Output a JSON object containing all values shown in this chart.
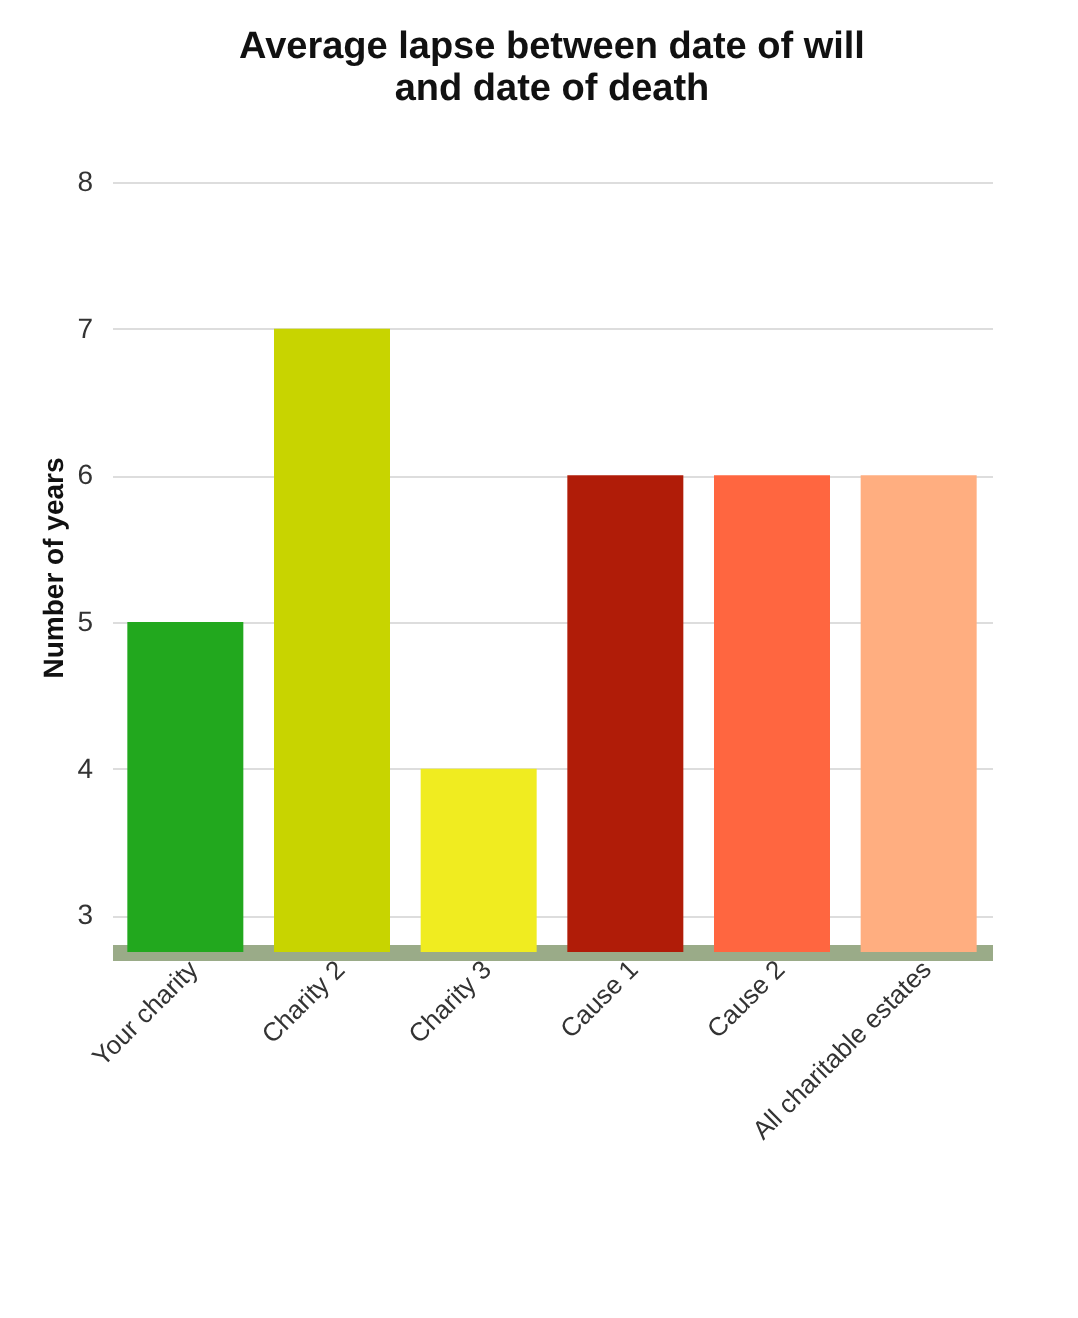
{
  "chart_data": {
    "type": "bar",
    "title": "Average lapse between date of will and date of death",
    "ylabel": "Number of years",
    "categories": [
      "Your charity",
      "Charity 2",
      "Charity 3",
      "Cause 1",
      "Cause 2",
      "All charitable estates"
    ],
    "values": [
      5,
      7,
      4,
      6,
      6,
      6
    ],
    "colors": [
      "#22a81e",
      "#c8d400",
      "#f0ec20",
      "#b01c08",
      "#ff6640",
      "#ffae80"
    ],
    "ylim": [
      2.75,
      8
    ],
    "yticks": [
      3,
      4,
      5,
      6,
      7,
      8
    ],
    "grid": "y"
  }
}
